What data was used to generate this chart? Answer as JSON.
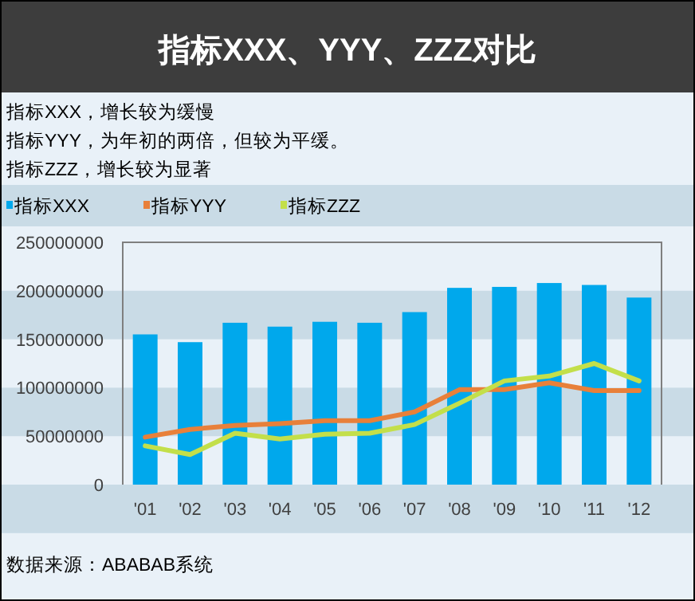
{
  "chart_data": {
    "type": "bar",
    "title": "指标XXX、YYY、ZZZ对比",
    "annotations": [
      "指标XXX，增长较为缓慢",
      "指标YYY，为年初的两倍，但较为平缓。",
      "指标ZZZ，增长较为显著",
      "数据来源：ABABAB系统"
    ],
    "categories": [
      "'01",
      "'02",
      "'03",
      "'04",
      "'05",
      "'06",
      "'07",
      "'08",
      "'09",
      "'10",
      "'11",
      "'12"
    ],
    "series": [
      {
        "name": "指标XXX",
        "color": "#00a8ec",
        "values": [
          155000000,
          147000000,
          167000000,
          163000000,
          168000000,
          167000000,
          178000000,
          203000000,
          204000000,
          208000000,
          206000000,
          193000000
        ]
      },
      {
        "name": "指标YYY",
        "type": "line",
        "color": "#e8803a",
        "values": [
          49000000,
          57000000,
          61000000,
          63000000,
          66000000,
          66000000,
          75000000,
          98000000,
          98000000,
          105000000,
          97000000,
          97000000
        ]
      },
      {
        "name": "指标ZZZ",
        "type": "line",
        "color": "#c3df4a",
        "values": [
          40000000,
          31000000,
          53000000,
          47000000,
          52000000,
          53000000,
          62000000,
          84000000,
          107000000,
          112000000,
          125000000,
          107000000
        ]
      }
    ],
    "ylim": [
      0,
      250000000
    ],
    "yticks": [
      0,
      50000000,
      100000000,
      150000000,
      200000000,
      250000000
    ],
    "legend": "top"
  }
}
